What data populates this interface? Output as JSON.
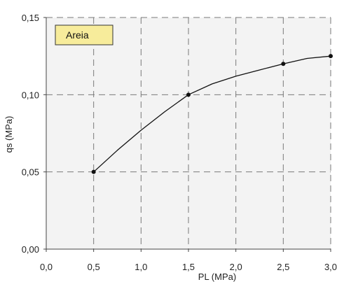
{
  "chart_data": {
    "type": "line",
    "xlabel": "PL (MPa)",
    "ylabel": "qs (MPa)",
    "xlim": [
      0.0,
      3.0
    ],
    "ylim": [
      0.0,
      0.15
    ],
    "x_ticks": [
      "0,0",
      "0,5",
      "1,0",
      "1,5",
      "2,0",
      "2,5",
      "3,0"
    ],
    "y_ticks": [
      "0,00",
      "0,05",
      "0,10",
      "0,15"
    ],
    "grid": true,
    "legend_position": "top-left",
    "series": [
      {
        "name": "Areia",
        "color": "#111111",
        "curve_x": [
          0.5,
          0.75,
          1.0,
          1.25,
          1.5,
          1.75,
          2.0,
          2.25,
          2.5,
          2.75,
          3.0
        ],
        "curve_y": [
          0.05,
          0.064,
          0.077,
          0.089,
          0.1,
          0.107,
          0.112,
          0.116,
          0.12,
          0.1235,
          0.125
        ],
        "markers_x": [
          0.5,
          1.5,
          2.5,
          3.0
        ],
        "markers_y": [
          0.05,
          0.1,
          0.12,
          0.125
        ]
      }
    ]
  },
  "colors": {
    "plot_background": "#f3f3f3",
    "legend_background": "#f7ec9b",
    "grid": "#7a7a7a",
    "line": "#111111"
  }
}
